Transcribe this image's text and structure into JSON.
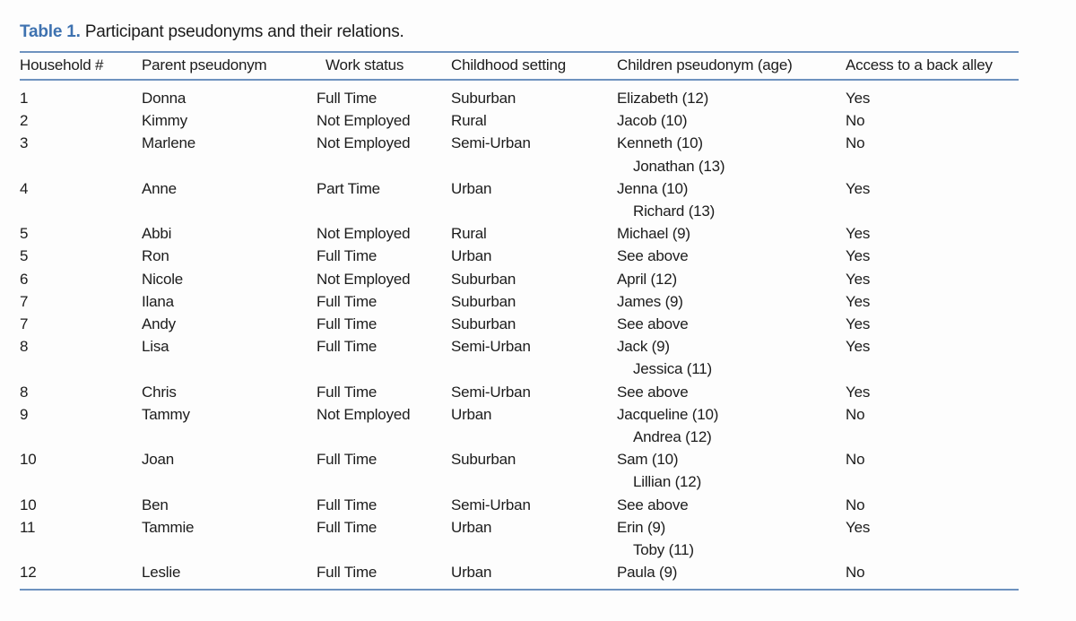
{
  "caption": {
    "label": "Table 1.",
    "text": " Participant pseudonyms and their relations."
  },
  "colors": {
    "caption_label_color": "#3e72b0",
    "rule_color": "#6e92bf",
    "text_color": "#1c1c1c",
    "page_bg": "#fdfdfd"
  },
  "table": {
    "headers": [
      "Household #",
      "Parent pseudonym",
      "Work status",
      "Childhood setting",
      "Children pseudonym (age)",
      "Access to a back alley"
    ],
    "rows": [
      {
        "household": "1",
        "parent": "Donna",
        "work_status": "Full Time",
        "childhood_setting": "Suburban",
        "children": [
          "Elizabeth (12)"
        ],
        "access_back_alley": "Yes"
      },
      {
        "household": "2",
        "parent": "Kimmy",
        "work_status": "Not Employed",
        "childhood_setting": "Rural",
        "children": [
          "Jacob (10)"
        ],
        "access_back_alley": "No"
      },
      {
        "household": "3",
        "parent": "Marlene",
        "work_status": "Not Employed",
        "childhood_setting": "Semi-Urban",
        "children": [
          "Kenneth (10)",
          "Jonathan (13)"
        ],
        "access_back_alley": "No"
      },
      {
        "household": "4",
        "parent": "Anne",
        "work_status": "Part Time",
        "childhood_setting": "Urban",
        "children": [
          "Jenna (10)",
          "Richard (13)"
        ],
        "access_back_alley": "Yes"
      },
      {
        "household": "5",
        "parent": "Abbi",
        "work_status": "Not Employed",
        "childhood_setting": "Rural",
        "children": [
          "Michael (9)"
        ],
        "access_back_alley": "Yes"
      },
      {
        "household": "5",
        "parent": "Ron",
        "work_status": "Full Time",
        "childhood_setting": "Urban",
        "children": [
          "See above"
        ],
        "access_back_alley": "Yes"
      },
      {
        "household": "6",
        "parent": "Nicole",
        "work_status": "Not Employed",
        "childhood_setting": "Suburban",
        "children": [
          "April (12)"
        ],
        "access_back_alley": "Yes"
      },
      {
        "household": "7",
        "parent": "Ilana",
        "work_status": "Full Time",
        "childhood_setting": "Suburban",
        "children": [
          "James (9)"
        ],
        "access_back_alley": "Yes"
      },
      {
        "household": "7",
        "parent": "Andy",
        "work_status": "Full Time",
        "childhood_setting": "Suburban",
        "children": [
          "See above"
        ],
        "access_back_alley": "Yes"
      },
      {
        "household": "8",
        "parent": "Lisa",
        "work_status": "Full Time",
        "childhood_setting": "Semi-Urban",
        "children": [
          "Jack (9)",
          "Jessica (11)"
        ],
        "access_back_alley": "Yes"
      },
      {
        "household": "8",
        "parent": "Chris",
        "work_status": "Full Time",
        "childhood_setting": "Semi-Urban",
        "children": [
          "See above"
        ],
        "access_back_alley": "Yes"
      },
      {
        "household": "9",
        "parent": "Tammy",
        "work_status": "Not Employed",
        "childhood_setting": "Urban",
        "children": [
          "Jacqueline (10)",
          "Andrea (12)"
        ],
        "access_back_alley": "No"
      },
      {
        "household": "10",
        "parent": "Joan",
        "work_status": "Full Time",
        "childhood_setting": "Suburban",
        "children": [
          "Sam (10)",
          "Lillian (12)"
        ],
        "access_back_alley": "No"
      },
      {
        "household": "10",
        "parent": "Ben",
        "work_status": "Full Time",
        "childhood_setting": "Semi-Urban",
        "children": [
          "See above"
        ],
        "access_back_alley": "No"
      },
      {
        "household": "11",
        "parent": "Tammie",
        "work_status": "Full Time",
        "childhood_setting": "Urban",
        "children": [
          "Erin (9)",
          "Toby (11)"
        ],
        "access_back_alley": "Yes"
      },
      {
        "household": "12",
        "parent": "Leslie",
        "work_status": "Full Time",
        "childhood_setting": "Urban",
        "children": [
          "Paula (9)"
        ],
        "access_back_alley": "No"
      }
    ]
  }
}
